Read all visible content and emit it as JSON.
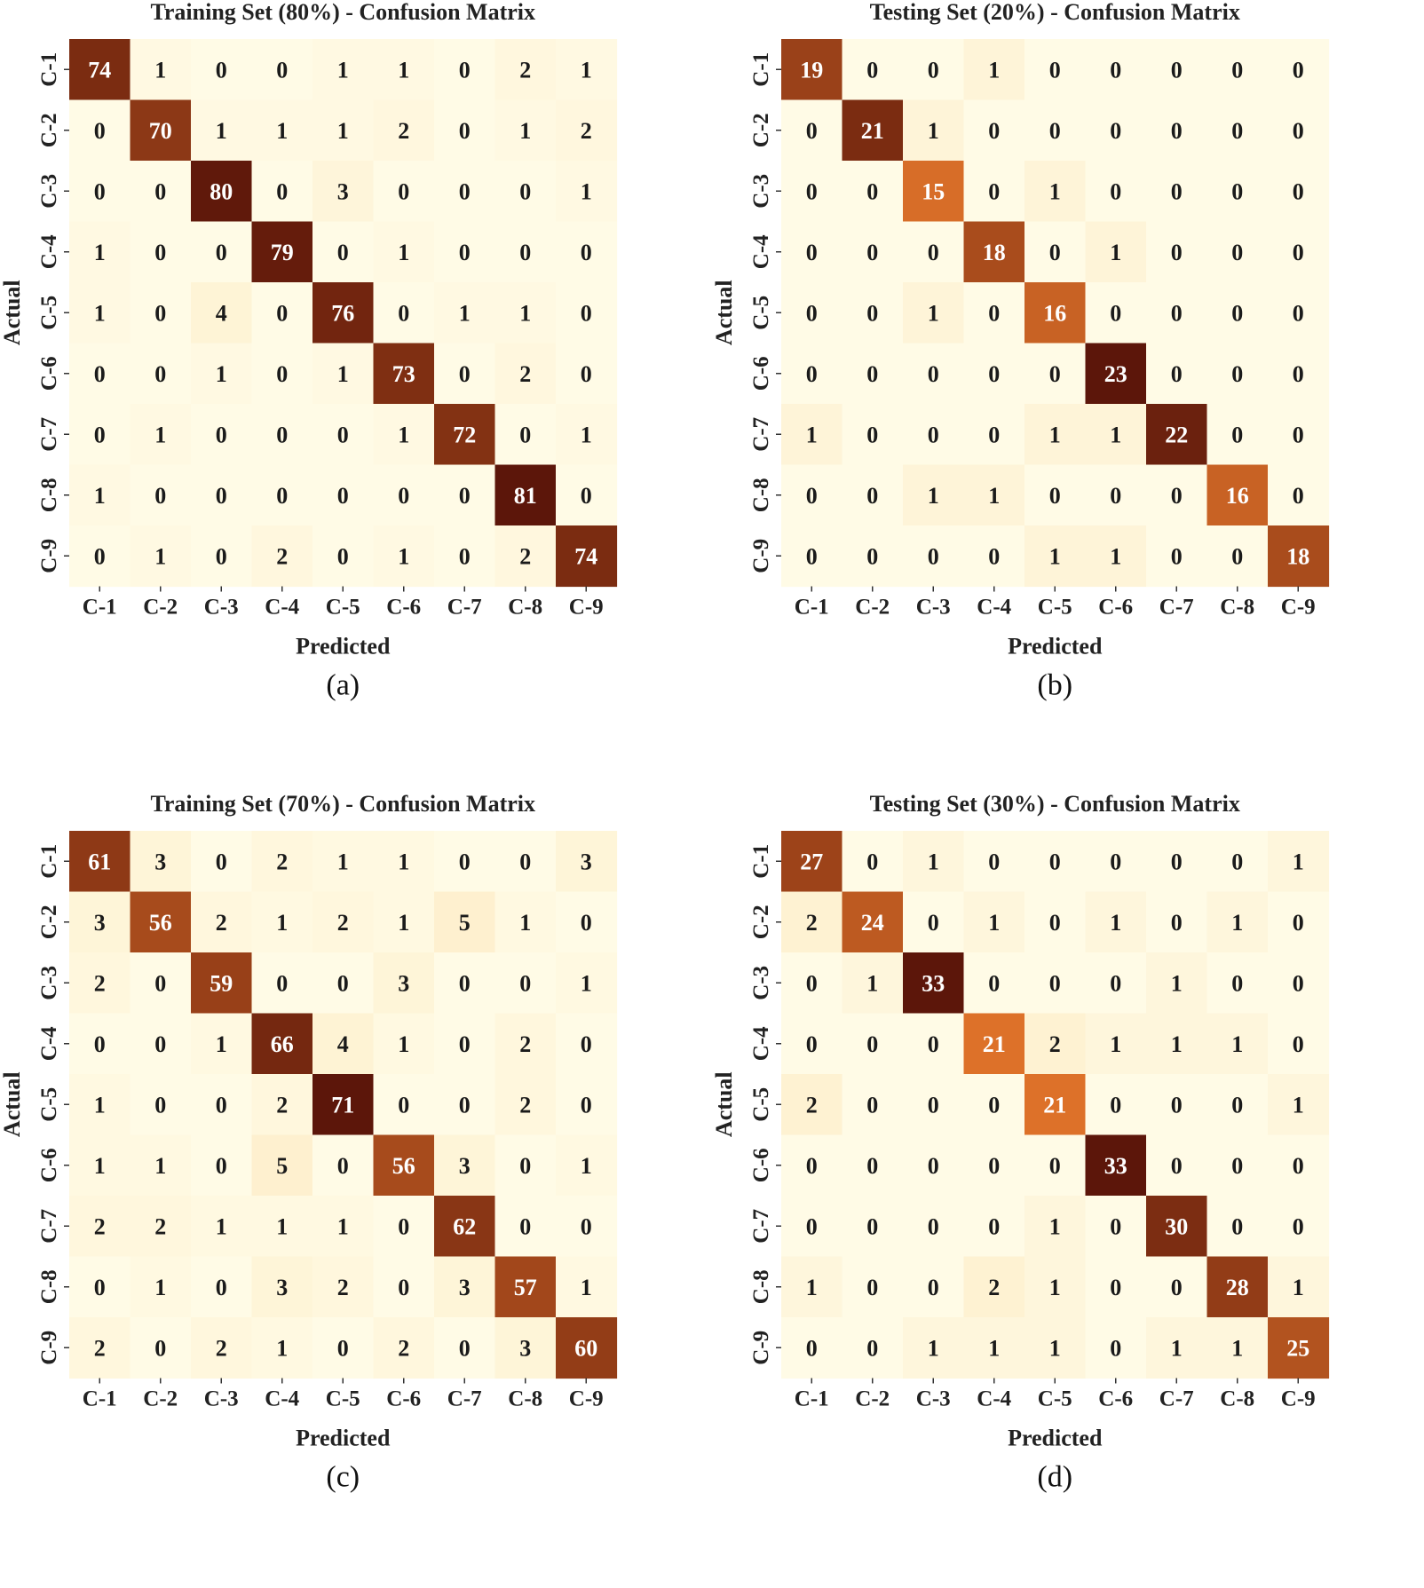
{
  "chart_data": [
    {
      "type": "heatmap",
      "title": "Training Set (80%) - Confusion Matrix",
      "xlabel": "Predicted",
      "ylabel": "Actual",
      "sublabel": "(a)",
      "x_categories": [
        "C-1",
        "C-2",
        "C-3",
        "C-4",
        "C-5",
        "C-6",
        "C-7",
        "C-8",
        "C-9"
      ],
      "y_categories": [
        "C-1",
        "C-2",
        "C-3",
        "C-4",
        "C-5",
        "C-6",
        "C-7",
        "C-8",
        "C-9"
      ],
      "values": [
        [
          74,
          1,
          0,
          0,
          1,
          1,
          0,
          2,
          1
        ],
        [
          0,
          70,
          1,
          1,
          1,
          2,
          0,
          1,
          2
        ],
        [
          0,
          0,
          80,
          0,
          3,
          0,
          0,
          0,
          1
        ],
        [
          1,
          0,
          0,
          79,
          0,
          1,
          0,
          0,
          0
        ],
        [
          1,
          0,
          4,
          0,
          76,
          0,
          1,
          1,
          0
        ],
        [
          0,
          0,
          1,
          0,
          1,
          73,
          0,
          2,
          0
        ],
        [
          0,
          1,
          0,
          0,
          0,
          1,
          72,
          0,
          1
        ],
        [
          1,
          0,
          0,
          0,
          0,
          0,
          0,
          81,
          0
        ],
        [
          0,
          1,
          0,
          2,
          0,
          1,
          0,
          2,
          74
        ]
      ]
    },
    {
      "type": "heatmap",
      "title": "Testing Set (20%) - Confusion Matrix",
      "xlabel": "Predicted",
      "ylabel": "Actual",
      "sublabel": "(b)",
      "x_categories": [
        "C-1",
        "C-2",
        "C-3",
        "C-4",
        "C-5",
        "C-6",
        "C-7",
        "C-8",
        "C-9"
      ],
      "y_categories": [
        "C-1",
        "C-2",
        "C-3",
        "C-4",
        "C-5",
        "C-6",
        "C-7",
        "C-8",
        "C-9"
      ],
      "values": [
        [
          19,
          0,
          0,
          1,
          0,
          0,
          0,
          0,
          0
        ],
        [
          0,
          21,
          1,
          0,
          0,
          0,
          0,
          0,
          0
        ],
        [
          0,
          0,
          15,
          0,
          1,
          0,
          0,
          0,
          0
        ],
        [
          0,
          0,
          0,
          18,
          0,
          1,
          0,
          0,
          0
        ],
        [
          0,
          0,
          1,
          0,
          16,
          0,
          0,
          0,
          0
        ],
        [
          0,
          0,
          0,
          0,
          0,
          23,
          0,
          0,
          0
        ],
        [
          1,
          0,
          0,
          0,
          1,
          1,
          22,
          0,
          0
        ],
        [
          0,
          0,
          1,
          1,
          0,
          0,
          0,
          16,
          0
        ],
        [
          0,
          0,
          0,
          0,
          1,
          1,
          0,
          0,
          18
        ]
      ]
    },
    {
      "type": "heatmap",
      "title": "Training Set (70%) - Confusion Matrix",
      "xlabel": "Predicted",
      "ylabel": "Actual",
      "sublabel": "(c)",
      "x_categories": [
        "C-1",
        "C-2",
        "C-3",
        "C-4",
        "C-5",
        "C-6",
        "C-7",
        "C-8",
        "C-9"
      ],
      "y_categories": [
        "C-1",
        "C-2",
        "C-3",
        "C-4",
        "C-5",
        "C-6",
        "C-7",
        "C-8",
        "C-9"
      ],
      "values": [
        [
          61,
          3,
          0,
          2,
          1,
          1,
          0,
          0,
          3
        ],
        [
          3,
          56,
          2,
          1,
          2,
          1,
          5,
          1,
          0
        ],
        [
          2,
          0,
          59,
          0,
          0,
          3,
          0,
          0,
          1
        ],
        [
          0,
          0,
          1,
          66,
          4,
          1,
          0,
          2,
          0
        ],
        [
          1,
          0,
          0,
          2,
          71,
          0,
          0,
          2,
          0
        ],
        [
          1,
          1,
          0,
          5,
          0,
          56,
          3,
          0,
          1
        ],
        [
          2,
          2,
          1,
          1,
          1,
          0,
          62,
          0,
          0
        ],
        [
          0,
          1,
          0,
          3,
          2,
          0,
          3,
          57,
          1
        ],
        [
          2,
          0,
          2,
          1,
          0,
          2,
          0,
          3,
          60
        ]
      ]
    },
    {
      "type": "heatmap",
      "title": "Testing Set (30%) - Confusion Matrix",
      "xlabel": "Predicted",
      "ylabel": "Actual",
      "sublabel": "(d)",
      "x_categories": [
        "C-1",
        "C-2",
        "C-3",
        "C-4",
        "C-5",
        "C-6",
        "C-7",
        "C-8",
        "C-9"
      ],
      "y_categories": [
        "C-1",
        "C-2",
        "C-3",
        "C-4",
        "C-5",
        "C-6",
        "C-7",
        "C-8",
        "C-9"
      ],
      "values": [
        [
          27,
          0,
          1,
          0,
          0,
          0,
          0,
          0,
          1
        ],
        [
          2,
          24,
          0,
          1,
          0,
          1,
          0,
          1,
          0
        ],
        [
          0,
          1,
          33,
          0,
          0,
          0,
          1,
          0,
          0
        ],
        [
          0,
          0,
          0,
          21,
          2,
          1,
          1,
          1,
          0
        ],
        [
          2,
          0,
          0,
          0,
          21,
          0,
          0,
          0,
          1
        ],
        [
          0,
          0,
          0,
          0,
          0,
          33,
          0,
          0,
          0
        ],
        [
          0,
          0,
          0,
          0,
          1,
          0,
          30,
          0,
          0
        ],
        [
          1,
          0,
          0,
          2,
          1,
          0,
          0,
          28,
          1
        ],
        [
          0,
          0,
          1,
          1,
          1,
          0,
          1,
          1,
          25
        ]
      ]
    }
  ],
  "colormap": {
    "low": "#fffbe6",
    "light": "#fde9bf",
    "mid": "#ea7a2c",
    "dark": "#5c160a"
  }
}
